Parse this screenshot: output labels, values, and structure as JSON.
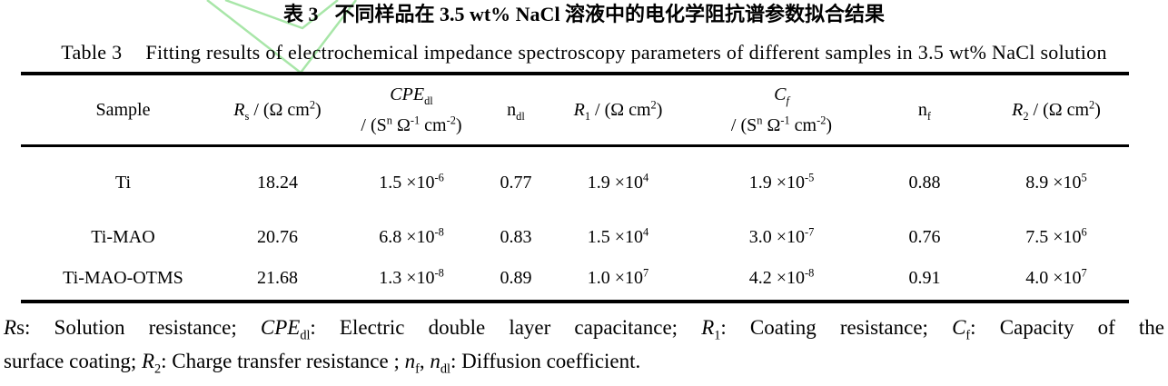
{
  "colors": {
    "text": "#000000",
    "background": "#ffffff",
    "rule": "#000000",
    "watermark_green": "#a8e6a8"
  },
  "watermark": {
    "name": "checkmark-watermark",
    "color": "#a8e6a8"
  },
  "titles": {
    "zh_label": "表 3",
    "zh_text": "不同样品在 3.5 wt% NaCl 溶液中的电化学阻抗谱参数拟合结果",
    "en_label": "Table 3",
    "en_text": "Fitting results of electrochemical impedance spectroscopy parameters of different samples in 3.5 wt% NaCl solution"
  },
  "table": {
    "headers": {
      "sample": [
        {
          "t": "Sample"
        }
      ],
      "rs": [
        {
          "t": "R",
          "s": "i"
        },
        {
          "t": "s",
          "s": "sub"
        },
        {
          "t": " / (Ω cm"
        },
        {
          "t": "2",
          "s": "sup"
        },
        {
          "t": ")"
        }
      ],
      "cpe_line1": [
        {
          "t": "CPE",
          "s": "i"
        },
        {
          "t": "dl",
          "s": "sub"
        }
      ],
      "cpe_line2": [
        {
          "t": "/ (S"
        },
        {
          "t": "n",
          "s": "sup"
        },
        {
          "t": " Ω"
        },
        {
          "t": "-1",
          "s": "sup"
        },
        {
          "t": " cm"
        },
        {
          "t": "-2",
          "s": "sup"
        },
        {
          "t": ")"
        }
      ],
      "ndl": [
        {
          "t": "n"
        },
        {
          "t": "dl",
          "s": "sub"
        }
      ],
      "r1": [
        {
          "t": "R",
          "s": "i"
        },
        {
          "t": "1",
          "s": "sub"
        },
        {
          "t": " / (Ω cm"
        },
        {
          "t": "2",
          "s": "sup"
        },
        {
          "t": ")"
        }
      ],
      "cf_line1": [
        {
          "t": "C",
          "s": "i"
        },
        {
          "t": "f",
          "s": "isub"
        }
      ],
      "cf_line2": [
        {
          "t": "/ (S"
        },
        {
          "t": "n",
          "s": "sup"
        },
        {
          "t": " Ω"
        },
        {
          "t": "-1",
          "s": "sup"
        },
        {
          "t": " cm"
        },
        {
          "t": "-2",
          "s": "sup"
        },
        {
          "t": ")"
        }
      ],
      "nf": [
        {
          "t": "n"
        },
        {
          "t": "f",
          "s": "sub"
        }
      ],
      "r2": [
        {
          "t": "R",
          "s": "i"
        },
        {
          "t": "2",
          "s": "sub"
        },
        {
          "t": " / (Ω cm"
        },
        {
          "t": "2",
          "s": "sup"
        },
        {
          "t": ")"
        }
      ]
    },
    "rows": [
      {
        "sample": [
          {
            "t": "Ti"
          }
        ],
        "rs": [
          {
            "t": "18.24"
          }
        ],
        "cpe": [
          {
            "t": "1.5 ×10"
          },
          {
            "t": "-6",
            "s": "sup"
          }
        ],
        "ndl": [
          {
            "t": "0.77"
          }
        ],
        "r1": [
          {
            "t": "1.9 ×10"
          },
          {
            "t": "4",
            "s": "sup"
          }
        ],
        "cf": [
          {
            "t": "1.9 ×10"
          },
          {
            "t": "-5",
            "s": "sup"
          }
        ],
        "nf": [
          {
            "t": "0.88"
          }
        ],
        "r2": [
          {
            "t": "8.9 ×10"
          },
          {
            "t": "5",
            "s": "sup"
          }
        ]
      },
      {
        "sample": [
          {
            "t": "Ti-MAO"
          }
        ],
        "rs": [
          {
            "t": "20.76"
          }
        ],
        "cpe": [
          {
            "t": "6.8 ×10"
          },
          {
            "t": "-8",
            "s": "sup"
          }
        ],
        "ndl": [
          {
            "t": "0.83"
          }
        ],
        "r1": [
          {
            "t": "1.5 ×10"
          },
          {
            "t": "4",
            "s": "sup"
          }
        ],
        "cf": [
          {
            "t": "3.0 ×10"
          },
          {
            "t": "-7",
            "s": "sup"
          }
        ],
        "nf": [
          {
            "t": "0.76"
          }
        ],
        "r2": [
          {
            "t": "7.5 ×10"
          },
          {
            "t": "6",
            "s": "sup"
          }
        ]
      },
      {
        "sample": [
          {
            "t": "Ti-MAO-OTMS"
          }
        ],
        "rs": [
          {
            "t": "21.68"
          }
        ],
        "cpe": [
          {
            "t": "1.3 ×10"
          },
          {
            "t": "-8",
            "s": "sup"
          }
        ],
        "ndl": [
          {
            "t": "0.89"
          }
        ],
        "r1": [
          {
            "t": "1.0 ×10"
          },
          {
            "t": "7",
            "s": "sup"
          }
        ],
        "cf": [
          {
            "t": "4.2 ×10"
          },
          {
            "t": "-8",
            "s": "sup"
          }
        ],
        "nf": [
          {
            "t": "0.91"
          }
        ],
        "r2": [
          {
            "t": "4.0 ×10"
          },
          {
            "t": "7",
            "s": "sup"
          }
        ]
      }
    ]
  },
  "footnote": {
    "line1": [
      {
        "t": "R",
        "s": "i"
      },
      {
        "t": "s: Solution resistance; "
      },
      {
        "t": "CPE",
        "s": "i"
      },
      {
        "t": "dl",
        "s": "sub"
      },
      {
        "t": ": Electric double layer capacitance; "
      },
      {
        "t": "R",
        "s": "i"
      },
      {
        "t": "1",
        "s": "sub"
      },
      {
        "t": ": Coating resistance; "
      },
      {
        "t": "C",
        "s": "i"
      },
      {
        "t": "f",
        "s": "sub"
      },
      {
        "t": ": Capacity of the"
      }
    ],
    "line2": [
      {
        "t": "surface coating; "
      },
      {
        "t": "R",
        "s": "i"
      },
      {
        "t": "2",
        "s": "sub"
      },
      {
        "t": ": Charge transfer resistance ; "
      },
      {
        "t": "n",
        "s": "i"
      },
      {
        "t": "f",
        "s": "sub"
      },
      {
        "t": ", "
      },
      {
        "t": "n",
        "s": "i"
      },
      {
        "t": "dl",
        "s": "sub"
      },
      {
        "t": ": Diffusion coefficient."
      }
    ]
  },
  "chart_data": {
    "type": "table",
    "title": "表 3 不同样品在 3.5 wt% NaCl 溶液中的电化学阻抗谱参数拟合结果 / Table 3 Fitting results of electrochemical impedance spectroscopy parameters of different samples in 3.5 wt% NaCl solution",
    "columns": [
      "Sample",
      "Rs / (Ω cm2)",
      "CPEdl / (Sn Ω-1 cm-2)",
      "ndl",
      "R1 / (Ω cm2)",
      "Cf / (Sn Ω-1 cm-2)",
      "nf",
      "R2 / (Ω cm2)"
    ],
    "rows": [
      [
        "Ti",
        "18.24",
        "1.5×10^-6",
        "0.77",
        "1.9×10^4",
        "1.9×10^-5",
        "0.88",
        "8.9×10^5"
      ],
      [
        "Ti-MAO",
        "20.76",
        "6.8×10^-8",
        "0.83",
        "1.5×10^4",
        "3.0×10^-7",
        "0.76",
        "7.5×10^6"
      ],
      [
        "Ti-MAO-OTMS",
        "21.68",
        "1.3×10^-8",
        "0.89",
        "1.0×10^7",
        "4.2×10^-8",
        "0.91",
        "4.0×10^7"
      ]
    ]
  }
}
